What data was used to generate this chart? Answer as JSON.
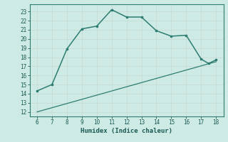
{
  "x": [
    6,
    7,
    8,
    9,
    10,
    11,
    12,
    13,
    14,
    15,
    16,
    17,
    17.5,
    18
  ],
  "y_curve": [
    14.3,
    15.0,
    18.9,
    21.1,
    21.4,
    23.2,
    22.4,
    22.4,
    20.9,
    20.3,
    20.4,
    17.8,
    17.3,
    17.7
  ],
  "y_line_x": [
    6,
    18
  ],
  "y_line_y": [
    12.0,
    17.5
  ],
  "xlim": [
    5.5,
    18.5
  ],
  "ylim": [
    11.5,
    23.8
  ],
  "xticks": [
    6,
    7,
    8,
    9,
    10,
    11,
    12,
    13,
    14,
    15,
    16,
    17,
    18
  ],
  "yticks": [
    12,
    13,
    14,
    15,
    16,
    17,
    18,
    19,
    20,
    21,
    22,
    23
  ],
  "xlabel": "Humidex (Indice chaleur)",
  "line_color": "#2d7d72",
  "bg_color": "#ceeae4",
  "grid_color_major": "#b8d4ce",
  "grid_color_minor": "#d0e8e2"
}
